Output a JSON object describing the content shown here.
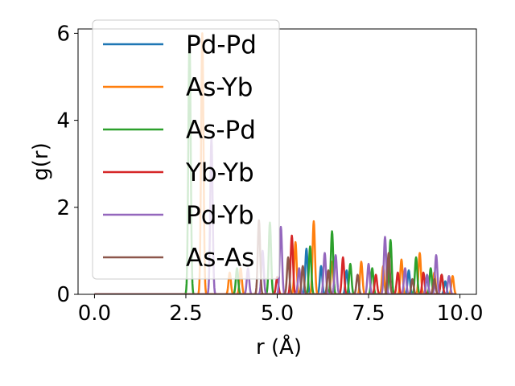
{
  "chart_data": {
    "type": "line",
    "title": "",
    "xlabel": "r (Å)",
    "ylabel": "g(r)",
    "xlim": [
      -0.45,
      10.45
    ],
    "ylim": [
      0,
      6.1
    ],
    "xticks": [
      0.0,
      2.5,
      5.0,
      7.5,
      10.0
    ],
    "xtick_labels": [
      "0.0",
      "2.5",
      "5.0",
      "7.5",
      "10.0"
    ],
    "yticks": [
      0,
      2,
      4,
      6
    ],
    "ytick_labels": [
      "0",
      "2",
      "4",
      "6"
    ],
    "grid": false,
    "legend_position": "upper-left",
    "series": [
      {
        "name": "Pd-Pd",
        "color": "#1f77b4",
        "peaks": [
          [
            5.8,
            1.05
          ],
          [
            6.2,
            0.65
          ],
          [
            6.9,
            0.55
          ],
          [
            7.9,
            0.5
          ],
          [
            8.6,
            0.55
          ],
          [
            9.1,
            0.4
          ],
          [
            9.6,
            0.3
          ]
        ]
      },
      {
        "name": "As-Yb",
        "color": "#ff7f0e",
        "peaks": [
          [
            2.95,
            6.0
          ],
          [
            3.7,
            0.5
          ],
          [
            4.0,
            0.6
          ],
          [
            5.5,
            1.2
          ],
          [
            6.0,
            1.68
          ],
          [
            6.5,
            0.75
          ],
          [
            7.3,
            0.75
          ],
          [
            7.9,
            0.65
          ],
          [
            8.4,
            0.8
          ],
          [
            8.9,
            0.95
          ],
          [
            9.3,
            0.5
          ],
          [
            9.8,
            0.42
          ]
        ]
      },
      {
        "name": "As-Pd",
        "color": "#2ca02c",
        "peaks": [
          [
            2.6,
            5.9
          ],
          [
            3.9,
            0.6
          ],
          [
            4.8,
            1.65
          ],
          [
            5.9,
            1.1
          ],
          [
            6.5,
            1.45
          ],
          [
            7.0,
            0.7
          ],
          [
            7.6,
            0.6
          ],
          [
            8.1,
            1.25
          ],
          [
            8.8,
            0.85
          ],
          [
            9.2,
            0.6
          ],
          [
            9.5,
            0.45
          ]
        ]
      },
      {
        "name": "Yb-Yb",
        "color": "#d62728",
        "peaks": [
          [
            5.0,
            0.4
          ],
          [
            5.4,
            1.35
          ],
          [
            6.8,
            0.85
          ],
          [
            7.7,
            0.45
          ],
          [
            8.3,
            0.5
          ],
          [
            9.0,
            0.5
          ],
          [
            9.5,
            0.45
          ]
        ]
      },
      {
        "name": "Pd-Yb",
        "color": "#9467bd",
        "peaks": [
          [
            3.2,
            3.6
          ],
          [
            4.2,
            0.6
          ],
          [
            4.6,
            1.0
          ],
          [
            5.1,
            1.55
          ],
          [
            5.6,
            0.6
          ],
          [
            6.3,
            0.95
          ],
          [
            6.6,
            0.9
          ],
          [
            7.5,
            0.7
          ],
          [
            7.95,
            1.32
          ],
          [
            8.5,
            0.6
          ],
          [
            9.1,
            0.45
          ],
          [
            9.35,
            0.9
          ],
          [
            9.7,
            0.42
          ]
        ]
      },
      {
        "name": "As-As",
        "color": "#8c564b",
        "peaks": [
          [
            4.5,
            1.7
          ],
          [
            5.3,
            0.85
          ],
          [
            5.7,
            0.65
          ],
          [
            6.4,
            0.55
          ],
          [
            7.2,
            0.45
          ],
          [
            8.05,
            0.95
          ],
          [
            8.7,
            0.35
          ],
          [
            9.3,
            0.35
          ]
        ]
      }
    ]
  }
}
